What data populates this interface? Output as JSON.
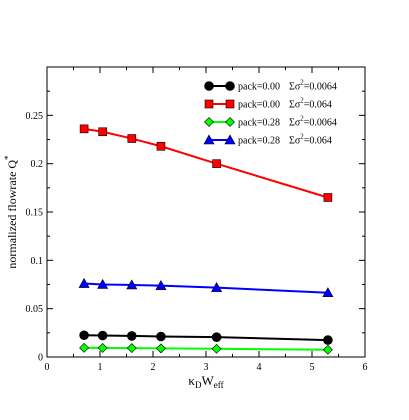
{
  "chart_data": {
    "type": "line",
    "title": "",
    "xlabel": {
      "main": "κ",
      "sub1": "D",
      "mid": "W",
      "sub2": "eff"
    },
    "ylabel": {
      "main": "normalized flowrate  Q",
      "sup": "*"
    },
    "xlim": [
      0,
      6
    ],
    "ylim": [
      0,
      0.3
    ],
    "x_ticks": [
      0,
      1,
      2,
      3,
      4,
      5,
      6
    ],
    "y_ticks": [
      0,
      0.05,
      0.1,
      0.15,
      0.2,
      0.25
    ],
    "x_tick_labels": [
      "0",
      "1",
      "2",
      "3",
      "4",
      "5",
      "6"
    ],
    "y_tick_labels": [
      "0",
      "0.05",
      "0.1",
      "0.15",
      "0.2",
      "0.25"
    ],
    "grid": false,
    "legend_placement": "top-right",
    "series": [
      {
        "legend": {
          "pack": "pack=0.00",
          "sigma": "Σσ",
          "sup": "2",
          "value": "=0.0064"
        },
        "color": "#000000",
        "marker": "circle",
        "points": [
          [
            0.7,
            0.0225
          ],
          [
            1.05,
            0.0222
          ],
          [
            1.6,
            0.0218
          ],
          [
            2.15,
            0.0212
          ],
          [
            3.2,
            0.0205
          ],
          [
            5.3,
            0.0175
          ]
        ]
      },
      {
        "legend": {
          "pack": "pack=0.00",
          "sigma": "Σσ",
          "sup": "2",
          "value": "=0.064"
        },
        "color": "#ff0000",
        "marker": "square",
        "points": [
          [
            0.7,
            0.236
          ],
          [
            1.05,
            0.233
          ],
          [
            1.6,
            0.226
          ],
          [
            2.15,
            0.218
          ],
          [
            3.2,
            0.2
          ],
          [
            5.3,
            0.165
          ]
        ]
      },
      {
        "legend": {
          "pack": "pack=0.28",
          "sigma": "Σσ",
          "sup": "2",
          "value": "=0.0064"
        },
        "color": "#00ff00",
        "marker": "diamond",
        "points": [
          [
            0.7,
            0.0095
          ],
          [
            1.05,
            0.0094
          ],
          [
            1.6,
            0.0092
          ],
          [
            2.15,
            0.0089
          ],
          [
            3.2,
            0.0085
          ],
          [
            5.3,
            0.0075
          ]
        ]
      },
      {
        "legend": {
          "pack": "pack=0.28",
          "sigma": "Σσ",
          "sup": "2",
          "value": "=0.064"
        },
        "color": "#0000ff",
        "marker": "triangle",
        "points": [
          [
            0.7,
            0.076
          ],
          [
            1.05,
            0.075
          ],
          [
            1.6,
            0.0745
          ],
          [
            2.15,
            0.0738
          ],
          [
            3.2,
            0.0718
          ],
          [
            5.3,
            0.0665
          ]
        ]
      }
    ]
  }
}
